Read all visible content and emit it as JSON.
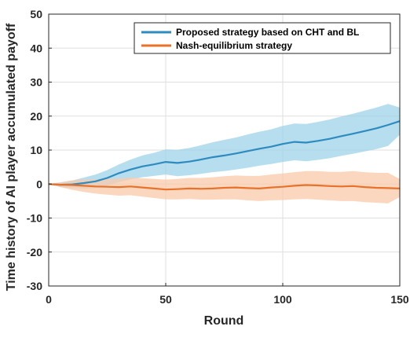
{
  "chart_data": {
    "type": "line",
    "title": "",
    "xlabel": "Round",
    "ylabel": "Time history of AI player accumulated payoff",
    "xlim": [
      0,
      150
    ],
    "ylim": [
      -30,
      50
    ],
    "xticks": [
      0,
      50,
      100,
      150
    ],
    "yticks": [
      -30,
      -20,
      -10,
      0,
      10,
      20,
      30,
      40,
      50
    ],
    "grid": true,
    "legend_position": "top-right",
    "series": [
      {
        "name": "Proposed strategy based on CHT and BL",
        "color": "#2e8bc0",
        "band_color": "#9fd3e8",
        "x": [
          0,
          5,
          10,
          15,
          20,
          25,
          30,
          35,
          40,
          45,
          50,
          55,
          60,
          65,
          70,
          75,
          80,
          85,
          90,
          95,
          100,
          105,
          110,
          115,
          120,
          125,
          130,
          135,
          140,
          145,
          150
        ],
        "y": [
          0,
          -0.2,
          -0.1,
          0.3,
          0.8,
          1.8,
          3.2,
          4.3,
          5.2,
          5.8,
          6.5,
          6.2,
          6.6,
          7.2,
          7.9,
          8.4,
          9.0,
          9.7,
          10.4,
          11.0,
          11.8,
          12.4,
          12.2,
          12.7,
          13.3,
          14.1,
          14.8,
          15.6,
          16.4,
          17.4,
          18.5
        ],
        "lower": [
          0,
          -0.9,
          -1.2,
          -1.3,
          -1.2,
          -0.5,
          0.6,
          1.4,
          2.0,
          2.4,
          2.8,
          2.3,
          2.6,
          3.0,
          3.5,
          3.8,
          4.3,
          4.8,
          5.4,
          5.9,
          6.5,
          7.0,
          6.7,
          7.1,
          7.6,
          8.3,
          8.9,
          9.6,
          10.3,
          11.2,
          14.5
        ],
        "upper": [
          0,
          0.5,
          1.0,
          1.9,
          2.8,
          4.1,
          5.8,
          7.2,
          8.4,
          9.2,
          10.2,
          10.1,
          10.6,
          11.4,
          12.3,
          13.0,
          13.7,
          14.6,
          15.4,
          16.1,
          17.1,
          17.8,
          17.7,
          18.3,
          19.0,
          19.9,
          20.7,
          21.6,
          22.5,
          23.6,
          22.5
        ]
      },
      {
        "name": "Nash-equilibrium strategy",
        "color": "#e8722a",
        "band_color": "#f9c9ab",
        "x": [
          0,
          5,
          10,
          15,
          20,
          25,
          30,
          35,
          40,
          45,
          50,
          55,
          60,
          65,
          70,
          75,
          80,
          85,
          90,
          95,
          100,
          105,
          110,
          115,
          120,
          125,
          130,
          135,
          140,
          145,
          150
        ],
        "y": [
          0,
          -0.2,
          -0.3,
          -0.5,
          -0.7,
          -0.8,
          -0.9,
          -0.7,
          -1.0,
          -1.3,
          -1.6,
          -1.5,
          -1.3,
          -1.4,
          -1.3,
          -1.1,
          -1.0,
          -1.2,
          -1.3,
          -1.0,
          -0.8,
          -0.5,
          -0.3,
          -0.4,
          -0.6,
          -0.7,
          -0.6,
          -0.9,
          -1.1,
          -1.2,
          -1.3
        ],
        "lower": [
          0,
          -0.9,
          -1.7,
          -2.3,
          -2.8,
          -3.1,
          -3.4,
          -3.3,
          -3.7,
          -4.1,
          -4.5,
          -4.5,
          -4.4,
          -4.6,
          -4.6,
          -4.5,
          -4.5,
          -4.8,
          -5.0,
          -4.8,
          -4.7,
          -4.5,
          -4.4,
          -4.6,
          -4.8,
          -5.0,
          -5.0,
          -5.3,
          -5.5,
          -5.7,
          -3.8
        ],
        "upper": [
          0,
          0.5,
          1.1,
          1.3,
          1.4,
          1.5,
          1.6,
          1.9,
          1.7,
          1.5,
          1.3,
          1.5,
          1.8,
          1.8,
          2.0,
          2.3,
          2.5,
          2.4,
          2.4,
          2.8,
          3.1,
          3.5,
          3.8,
          3.8,
          3.6,
          3.6,
          3.8,
          3.5,
          3.3,
          3.3,
          1.5
        ]
      }
    ]
  }
}
